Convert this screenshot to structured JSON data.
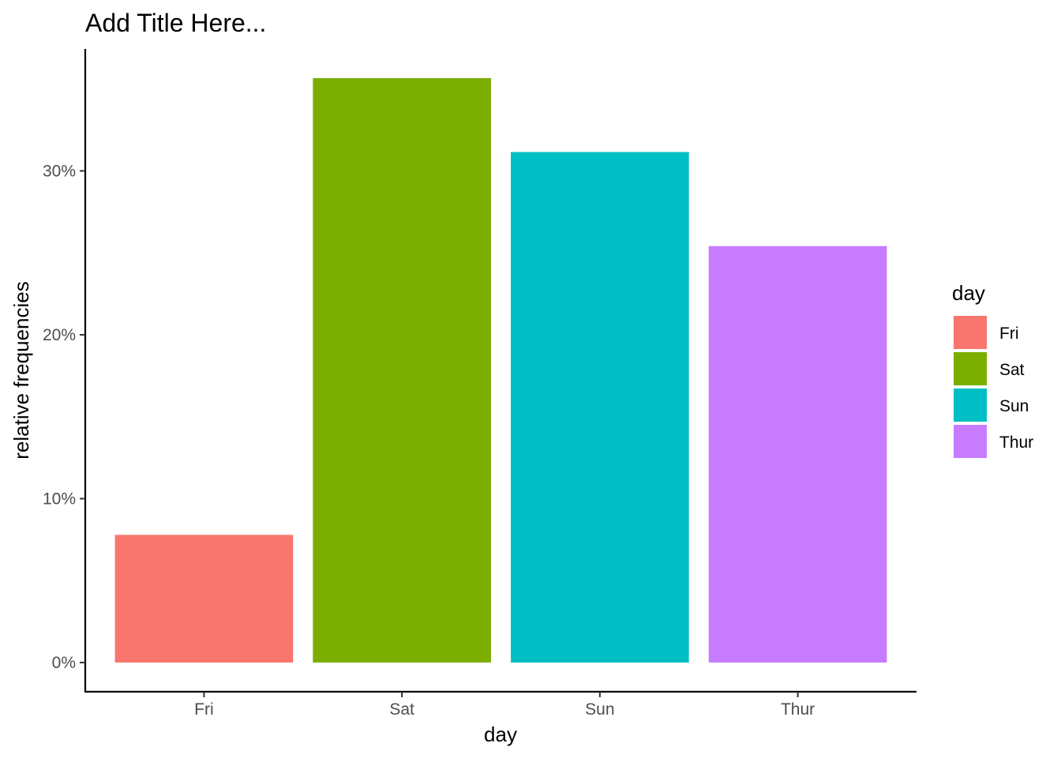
{
  "chart_data": {
    "type": "bar",
    "title": "Add Title Here...",
    "xlabel": "day",
    "ylabel": "relative frequencies",
    "categories": [
      "Fri",
      "Sat",
      "Sun",
      "Thur"
    ],
    "values": [
      7.79,
      35.66,
      31.15,
      25.41
    ],
    "colors": [
      "#F8766D",
      "#7CAE00",
      "#00BFC4",
      "#C77CFF"
    ],
    "yticks": [
      0,
      10,
      20,
      30
    ],
    "ytick_labels": [
      "0%",
      "10%",
      "20%",
      "30%"
    ],
    "ylim": [
      -1.78,
      37.44
    ],
    "grid": false,
    "legend": {
      "title": "day",
      "position": "right",
      "items": [
        "Fri",
        "Sat",
        "Sun",
        "Thur"
      ]
    }
  }
}
